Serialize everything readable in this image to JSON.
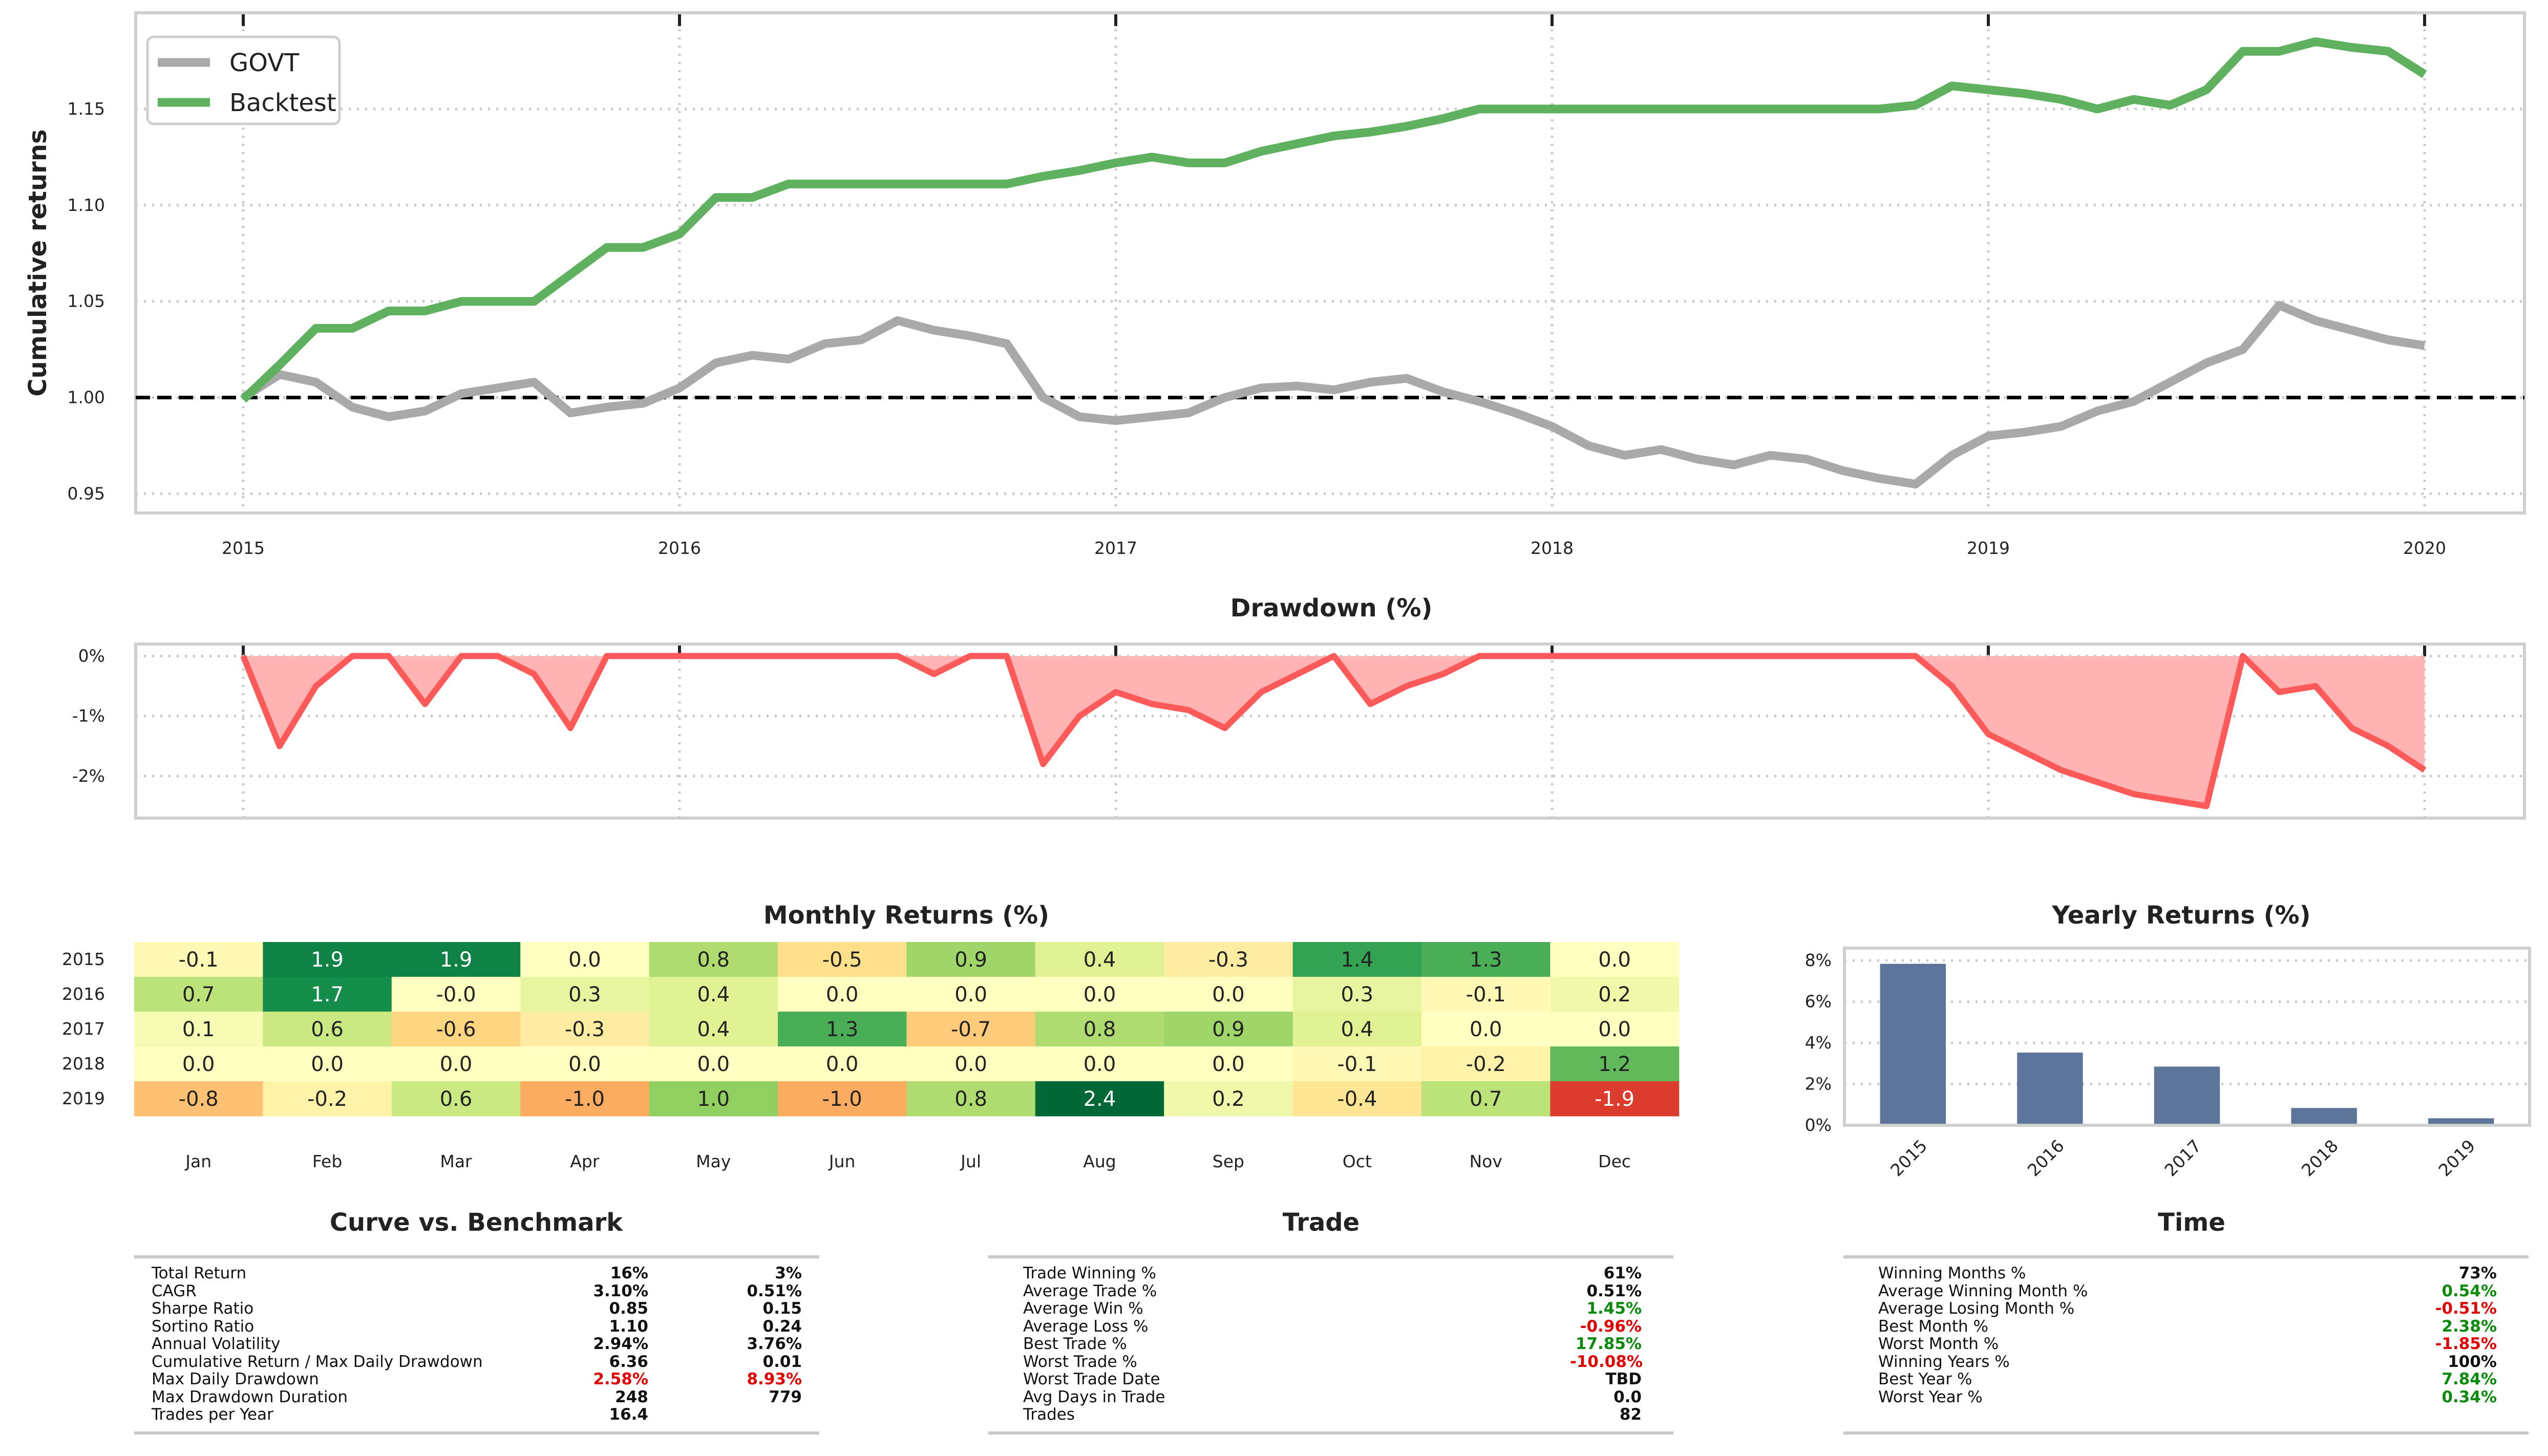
{
  "colors": {
    "govt": "#a9a9a9",
    "backtest": "#5fb15f",
    "drawdown_line": "#ff5a5a",
    "drawdown_fill": "#ffb3b3",
    "bar": "#5d7599",
    "baseline": "#000000"
  },
  "chart_data": [
    {
      "type": "line",
      "ylabel": "Cumulative returns",
      "ylim": [
        0.94,
        1.2
      ],
      "yticks": [
        "0.95",
        "1.00",
        "1.05",
        "1.10",
        "1.15"
      ],
      "xticks": [
        "2015",
        "2016",
        "2017",
        "2018",
        "2019",
        "2020"
      ],
      "grid": true,
      "legend_position": "top-left",
      "reference_line": 1.0,
      "series": [
        {
          "name": "GOVT",
          "x": [
            "2015-01",
            "2015-02",
            "2015-03",
            "2015-04",
            "2015-05",
            "2015-06",
            "2015-07",
            "2015-08",
            "2015-09",
            "2015-10",
            "2015-11",
            "2015-12",
            "2016-01",
            "2016-02",
            "2016-03",
            "2016-04",
            "2016-05",
            "2016-06",
            "2016-07",
            "2016-08",
            "2016-09",
            "2016-10",
            "2016-11",
            "2016-12",
            "2017-01",
            "2017-02",
            "2017-03",
            "2017-04",
            "2017-05",
            "2017-06",
            "2017-07",
            "2017-08",
            "2017-09",
            "2017-10",
            "2017-11",
            "2017-12",
            "2018-01",
            "2018-02",
            "2018-03",
            "2018-04",
            "2018-05",
            "2018-06",
            "2018-07",
            "2018-08",
            "2018-09",
            "2018-10",
            "2018-11",
            "2018-12",
            "2019-01",
            "2019-02",
            "2019-03",
            "2019-04",
            "2019-05",
            "2019-06",
            "2019-07",
            "2019-08",
            "2019-09",
            "2019-10",
            "2019-11",
            "2019-12",
            "2020-01"
          ],
          "values": [
            1.0,
            1.012,
            1.008,
            0.995,
            0.99,
            0.993,
            1.002,
            1.005,
            1.008,
            0.992,
            0.995,
            0.997,
            1.005,
            1.018,
            1.022,
            1.02,
            1.028,
            1.03,
            1.04,
            1.035,
            1.032,
            1.028,
            1.0,
            0.99,
            0.988,
            0.99,
            0.992,
            1.0,
            1.005,
            1.006,
            1.004,
            1.008,
            1.01,
            1.003,
            0.998,
            0.992,
            0.985,
            0.975,
            0.97,
            0.973,
            0.968,
            0.965,
            0.97,
            0.968,
            0.962,
            0.958,
            0.955,
            0.97,
            0.98,
            0.982,
            0.985,
            0.993,
            0.998,
            1.008,
            1.018,
            1.025,
            1.048,
            1.04,
            1.035,
            1.03,
            1.027
          ]
        },
        {
          "name": "Backtest",
          "x": [
            "2015-01",
            "2015-02",
            "2015-03",
            "2015-04",
            "2015-05",
            "2015-06",
            "2015-07",
            "2015-08",
            "2015-09",
            "2015-10",
            "2015-11",
            "2015-12",
            "2016-01",
            "2016-02",
            "2016-03",
            "2016-04",
            "2016-05",
            "2016-06",
            "2016-07",
            "2016-08",
            "2016-09",
            "2016-10",
            "2016-11",
            "2016-12",
            "2017-01",
            "2017-02",
            "2017-03",
            "2017-04",
            "2017-05",
            "2017-06",
            "2017-07",
            "2017-08",
            "2017-09",
            "2017-10",
            "2017-11",
            "2017-12",
            "2018-01",
            "2018-02",
            "2018-03",
            "2018-04",
            "2018-05",
            "2018-06",
            "2018-07",
            "2018-08",
            "2018-09",
            "2018-10",
            "2018-11",
            "2018-12",
            "2019-01",
            "2019-02",
            "2019-03",
            "2019-04",
            "2019-05",
            "2019-06",
            "2019-07",
            "2019-08",
            "2019-09",
            "2019-10",
            "2019-11",
            "2019-12",
            "2020-01"
          ],
          "values": [
            0.999,
            1.017,
            1.036,
            1.036,
            1.045,
            1.045,
            1.05,
            1.05,
            1.05,
            1.064,
            1.078,
            1.078,
            1.085,
            1.104,
            1.104,
            1.111,
            1.111,
            1.111,
            1.111,
            1.111,
            1.111,
            1.111,
            1.115,
            1.118,
            1.122,
            1.125,
            1.122,
            1.122,
            1.128,
            1.132,
            1.136,
            1.138,
            1.141,
            1.145,
            1.15,
            1.15,
            1.15,
            1.15,
            1.15,
            1.15,
            1.15,
            1.15,
            1.15,
            1.15,
            1.15,
            1.15,
            1.152,
            1.162,
            1.16,
            1.158,
            1.155,
            1.15,
            1.155,
            1.152,
            1.16,
            1.18,
            1.18,
            1.185,
            1.182,
            1.18,
            1.168
          ]
        }
      ]
    },
    {
      "type": "area",
      "title": "Drawdown (%)",
      "ylim": [
        -2.7,
        0.2
      ],
      "yticks": [
        "0%",
        "-1%",
        "-2%"
      ],
      "xticks": [
        "2015",
        "2016",
        "2017",
        "2018",
        "2019",
        "2020"
      ],
      "grid": true,
      "series": [
        {
          "name": "Backtest drawdown",
          "x": [
            "2015-01",
            "2015-02",
            "2015-03",
            "2015-04",
            "2015-05",
            "2015-06",
            "2015-07",
            "2015-08",
            "2015-09",
            "2015-10",
            "2015-11",
            "2015-12",
            "2016-01",
            "2016-02",
            "2016-03",
            "2016-04",
            "2016-05",
            "2016-06",
            "2016-07",
            "2016-08",
            "2016-09",
            "2016-10",
            "2016-11",
            "2016-12",
            "2017-01",
            "2017-02",
            "2017-03",
            "2017-04",
            "2017-05",
            "2017-06",
            "2017-07",
            "2017-08",
            "2017-09",
            "2017-10",
            "2017-11",
            "2017-12",
            "2018-01",
            "2018-02",
            "2018-03",
            "2018-04",
            "2018-05",
            "2018-06",
            "2018-07",
            "2018-08",
            "2018-09",
            "2018-10",
            "2018-11",
            "2018-12",
            "2019-01",
            "2019-02",
            "2019-03",
            "2019-04",
            "2019-05",
            "2019-06",
            "2019-07",
            "2019-08",
            "2019-09",
            "2019-10",
            "2019-11",
            "2019-12",
            "2020-01"
          ],
          "values": [
            0,
            -1.5,
            -0.5,
            0,
            0,
            -0.8,
            0,
            0,
            -0.3,
            -1.2,
            0,
            0,
            0,
            0,
            0,
            0,
            0,
            0,
            0,
            -0.3,
            0,
            0,
            -1.8,
            -1.0,
            -0.6,
            -0.8,
            -0.9,
            -1.2,
            -0.6,
            -0.3,
            0,
            -0.8,
            -0.5,
            -0.3,
            0,
            0,
            0,
            0,
            0,
            0,
            0,
            0,
            0,
            0,
            0,
            0,
            0,
            -0.5,
            -1.3,
            -1.6,
            -1.9,
            -2.1,
            -2.3,
            -2.4,
            -2.5,
            0,
            -0.6,
            -0.5,
            -1.2,
            -1.5,
            -1.9
          ]
        }
      ]
    },
    {
      "type": "heatmap",
      "title": "Monthly Returns (%)",
      "x": [
        "Jan",
        "Feb",
        "Mar",
        "Apr",
        "May",
        "Jun",
        "Jul",
        "Aug",
        "Sep",
        "Oct",
        "Nov",
        "Dec"
      ],
      "y": [
        "2015",
        "2016",
        "2017",
        "2018",
        "2019"
      ],
      "values": [
        [
          "-0.1",
          "1.9",
          "1.9",
          "0.0",
          "0.8",
          "-0.5",
          "0.9",
          "0.4",
          "-0.3",
          "1.4",
          "1.3",
          "0.0"
        ],
        [
          "0.7",
          "1.7",
          "-0.0",
          "0.3",
          "0.4",
          "0.0",
          "0.0",
          "0.0",
          "0.0",
          "0.3",
          "-0.1",
          "0.2"
        ],
        [
          "0.1",
          "0.6",
          "-0.6",
          "-0.3",
          "0.4",
          "1.3",
          "-0.7",
          "0.8",
          "0.9",
          "0.4",
          "0.0",
          "0.0"
        ],
        [
          "0.0",
          "0.0",
          "0.0",
          "0.0",
          "0.0",
          "0.0",
          "0.0",
          "0.0",
          "0.0",
          "-0.1",
          "-0.2",
          "1.2"
        ],
        [
          "-0.8",
          "-0.2",
          "0.6",
          "-1.0",
          "1.0",
          "-1.0",
          "0.8",
          "2.4",
          "0.2",
          "-0.4",
          "0.7",
          "-1.9"
        ]
      ]
    },
    {
      "type": "bar",
      "title": "Yearly Returns (%)",
      "categories": [
        "2015",
        "2016",
        "2017",
        "2018",
        "2019"
      ],
      "values": [
        7.84,
        3.53,
        2.85,
        0.84,
        0.34
      ],
      "ylim": [
        0,
        8.6
      ],
      "yticks": [
        "0%",
        "2%",
        "4%",
        "6%",
        "8%"
      ],
      "grid": true
    }
  ],
  "tables": {
    "curve": {
      "title": "Curve vs. Benchmark",
      "rows": [
        {
          "label": "Total Return",
          "a": "16%",
          "b": "3%"
        },
        {
          "label": "CAGR",
          "a": "3.10%",
          "b": "0.51%"
        },
        {
          "label": "Sharpe Ratio",
          "a": "0.85",
          "b": "0.15"
        },
        {
          "label": "Sortino Ratio",
          "a": "1.10",
          "b": "0.24"
        },
        {
          "label": "Annual Volatility",
          "a": "2.94%",
          "b": "3.76%"
        },
        {
          "label": "Cumulative Return / Max Daily Drawdown",
          "a": "6.36",
          "b": "0.01"
        },
        {
          "label": "Max Daily Drawdown",
          "a": "2.58%",
          "b": "8.93%",
          "color": "neg"
        },
        {
          "label": "Max Drawdown Duration",
          "a": "248",
          "b": "779"
        },
        {
          "label": "Trades per Year",
          "a": "16.4",
          "b": ""
        }
      ]
    },
    "trade": {
      "title": "Trade",
      "rows": [
        {
          "label": "Trade Winning %",
          "a": "61%"
        },
        {
          "label": "Average Trade %",
          "a": "0.51%"
        },
        {
          "label": "Average Win %",
          "a": "1.45%",
          "color": "pos"
        },
        {
          "label": "Average Loss %",
          "a": "-0.96%",
          "color": "neg"
        },
        {
          "label": "Best Trade %",
          "a": "17.85%",
          "color": "pos"
        },
        {
          "label": "Worst Trade %",
          "a": "-10.08%",
          "color": "neg"
        },
        {
          "label": "Worst Trade Date",
          "a": "TBD"
        },
        {
          "label": "Avg Days in Trade",
          "a": "0.0"
        },
        {
          "label": "Trades",
          "a": "82"
        }
      ]
    },
    "time": {
      "title": "Time",
      "rows": [
        {
          "label": "Winning Months %",
          "a": "73%"
        },
        {
          "label": "Average Winning Month %",
          "a": "0.54%",
          "color": "pos"
        },
        {
          "label": "Average Losing Month %",
          "a": "-0.51%",
          "color": "neg"
        },
        {
          "label": "Best Month %",
          "a": "2.38%",
          "color": "pos"
        },
        {
          "label": "Worst Month %",
          "a": "-1.85%",
          "color": "neg"
        },
        {
          "label": "Winning Years %",
          "a": "100%"
        },
        {
          "label": "Best Year %",
          "a": "7.84%",
          "color": "pos"
        },
        {
          "label": "Worst Year %",
          "a": "0.34%",
          "color": "pos"
        }
      ]
    }
  }
}
